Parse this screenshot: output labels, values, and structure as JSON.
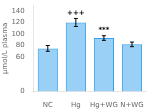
{
  "chart_data": {
    "type": "bar",
    "categories": [
      "NC",
      "Hg",
      "Hg+WG",
      "N+WG"
    ],
    "values": [
      75,
      120,
      93,
      82
    ],
    "errors": [
      5,
      7,
      4,
      4
    ],
    "ylabel": "μmol/L plasma",
    "ylim": [
      0,
      150
    ],
    "yticks": [
      0,
      60,
      80,
      100,
      120,
      140
    ],
    "grid": false,
    "annotations": [
      {
        "category": "Hg",
        "text": "+++"
      },
      {
        "category": "Hg+WG",
        "text": "***"
      }
    ]
  }
}
